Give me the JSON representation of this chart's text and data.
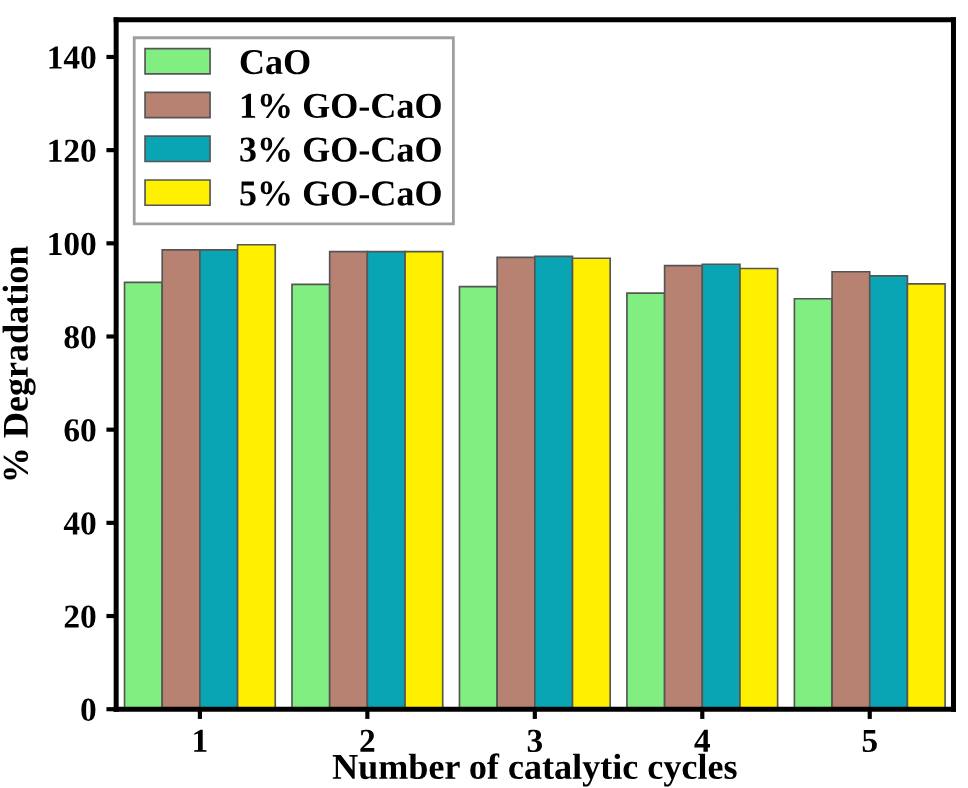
{
  "chart_data": {
    "type": "bar",
    "xlabel": "Number of catalytic cycles",
    "ylabel": "% Degradation",
    "categories": [
      "1",
      "2",
      "3",
      "4",
      "5"
    ],
    "series": [
      {
        "name": "CaO",
        "color": "#80ee80",
        "values": [
          91.6,
          91.2,
          90.7,
          89.3,
          88.1
        ]
      },
      {
        "name": "1% GO-CaO",
        "color": "#b88272",
        "values": [
          98.6,
          98.2,
          97.0,
          95.2,
          93.9
        ]
      },
      {
        "name": "3% GO-CaO",
        "color": "#0aa5b5",
        "values": [
          98.6,
          98.2,
          97.2,
          95.5,
          93.0
        ]
      },
      {
        "name": "5% GO-CaO",
        "color": "#fff000",
        "values": [
          99.7,
          98.2,
          96.8,
          94.6,
          91.3
        ]
      }
    ],
    "ylim": [
      0,
      148
    ],
    "yticks": [
      0,
      20,
      40,
      60,
      80,
      100,
      120,
      140
    ],
    "legend": "top left",
    "grid": false
  }
}
